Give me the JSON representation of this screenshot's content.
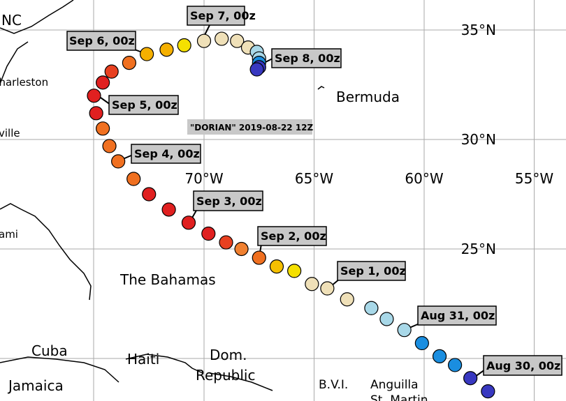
{
  "storm_title": "\"DORIAN\" 2019-08-22 12Z",
  "lon_ticks": [
    {
      "value": -70,
      "label": "70°W"
    },
    {
      "value": -65,
      "label": "65°W"
    },
    {
      "value": -60,
      "label": "60°W"
    },
    {
      "value": -55,
      "label": "55°W"
    }
  ],
  "lat_ticks": [
    {
      "value": 35,
      "label": "35°N"
    },
    {
      "value": 30,
      "label": "30°N"
    },
    {
      "value": 25,
      "label": "25°N"
    }
  ],
  "places": [
    "NC",
    "Charleston",
    "ville",
    "ami",
    "Bermuda",
    "The Bahamas",
    "Cuba",
    "Haiti",
    "Dom.",
    "Republic",
    "Jamaica",
    "B.V.I.",
    "Anguilla",
    "St. Martin"
  ],
  "date_labels": [
    "Sep 7, 00z",
    "Sep 6, 00z",
    "Sep 8, 00z",
    "Sep 5, 00z",
    "Sep 4, 00z",
    "Sep 3, 00z",
    "Sep 2, 00z",
    "Sep 1, 00z",
    "Aug 31, 00z",
    "Aug 30, 00z"
  ],
  "track": [
    {
      "lon": -57.1,
      "lat": 18.5,
      "color": "#3838c0"
    },
    {
      "lon": -57.9,
      "lat": 19.1,
      "color": "#3838c0"
    },
    {
      "lon": -58.6,
      "lat": 19.7,
      "color": "#1a8ee0"
    },
    {
      "lon": -59.3,
      "lat": 20.1,
      "color": "#1a8ee0"
    },
    {
      "lon": -60.1,
      "lat": 20.7,
      "color": "#1a8ee0"
    },
    {
      "lon": -60.9,
      "lat": 21.3,
      "color": "#a8d8e8"
    },
    {
      "lon": -61.7,
      "lat": 21.8,
      "color": "#a8d8e8"
    },
    {
      "lon": -62.4,
      "lat": 22.3,
      "color": "#a8d8e8"
    },
    {
      "lon": -63.5,
      "lat": 22.7,
      "color": "#efe0b8"
    },
    {
      "lon": -64.4,
      "lat": 23.2,
      "color": "#efe0b8"
    },
    {
      "lon": -65.1,
      "lat": 23.4,
      "color": "#efe0b8"
    },
    {
      "lon": -65.9,
      "lat": 24.0,
      "color": "#f5e000"
    },
    {
      "lon": -66.7,
      "lat": 24.2,
      "color": "#f5c000"
    },
    {
      "lon": -67.5,
      "lat": 24.6,
      "color": "#f07020"
    },
    {
      "lon": -68.3,
      "lat": 25.0,
      "color": "#f08030"
    },
    {
      "lon": -69.0,
      "lat": 25.3,
      "color": "#e84020"
    },
    {
      "lon": -69.8,
      "lat": 25.7,
      "color": "#e02020"
    },
    {
      "lon": -70.7,
      "lat": 26.2,
      "color": "#e02020"
    },
    {
      "lon": -71.6,
      "lat": 26.8,
      "color": "#e02020"
    },
    {
      "lon": -72.5,
      "lat": 27.5,
      "color": "#e02020"
    },
    {
      "lon": -73.2,
      "lat": 28.2,
      "color": "#f07020"
    },
    {
      "lon": -73.9,
      "lat": 29.0,
      "color": "#f07020"
    },
    {
      "lon": -74.3,
      "lat": 29.7,
      "color": "#f07020"
    },
    {
      "lon": -74.6,
      "lat": 30.5,
      "color": "#f07020"
    },
    {
      "lon": -74.9,
      "lat": 31.2,
      "color": "#e02020"
    },
    {
      "lon": -75.0,
      "lat": 32.0,
      "color": "#e02020"
    },
    {
      "lon": -74.6,
      "lat": 32.6,
      "color": "#e02020"
    },
    {
      "lon": -74.2,
      "lat": 33.1,
      "color": "#e84020"
    },
    {
      "lon": -73.4,
      "lat": 33.5,
      "color": "#f07020"
    },
    {
      "lon": -72.6,
      "lat": 33.9,
      "color": "#f5b000"
    },
    {
      "lon": -71.7,
      "lat": 34.1,
      "color": "#f5b000"
    },
    {
      "lon": -70.9,
      "lat": 34.3,
      "color": "#f5e000"
    },
    {
      "lon": -70.0,
      "lat": 34.5,
      "color": "#efe0b8"
    },
    {
      "lon": -69.2,
      "lat": 34.6,
      "color": "#efe0b8"
    },
    {
      "lon": -68.5,
      "lat": 34.5,
      "color": "#efe0b8"
    },
    {
      "lon": -68.0,
      "lat": 34.2,
      "color": "#efe0b8"
    },
    {
      "lon": -67.6,
      "lat": 34.0,
      "color": "#a8d8e8"
    },
    {
      "lon": -67.5,
      "lat": 33.7,
      "color": "#a8d8e8"
    },
    {
      "lon": -67.5,
      "lat": 33.5,
      "color": "#1a8ee0"
    },
    {
      "lon": -67.5,
      "lat": 33.3,
      "color": "#3838c0"
    },
    {
      "lon": -67.6,
      "lat": 33.2,
      "color": "#3838c0"
    }
  ]
}
